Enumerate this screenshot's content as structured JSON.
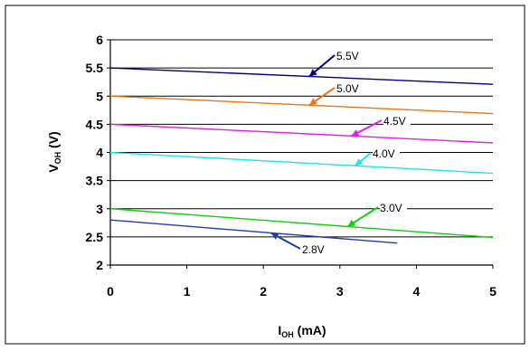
{
  "chart_data": {
    "type": "line",
    "xlabel": {
      "main": "I",
      "sub": "OH",
      "unit": " (mA)"
    },
    "ylabel": {
      "main": "V",
      "sub": "OH",
      "unit": " (V)"
    },
    "xlim": [
      0,
      5
    ],
    "ylim": [
      2,
      6
    ],
    "x_ticks": [
      "0",
      "1",
      "2",
      "3",
      "4",
      "5"
    ],
    "y_ticks": [
      "2",
      "2.5",
      "3",
      "3.5",
      "4",
      "4.5",
      "5",
      "5.5",
      "6"
    ],
    "grid": "horizontal",
    "legend": "none",
    "series": [
      {
        "label": "5.5V",
        "color": "#000080",
        "x": [
          0,
          5
        ],
        "y": [
          5.5,
          5.21
        ]
      },
      {
        "label": "5.0V",
        "color": "#E8761C",
        "x": [
          0,
          5
        ],
        "y": [
          5.0,
          4.69
        ]
      },
      {
        "label": "4.5V",
        "color": "#E020E0",
        "x": [
          0,
          5
        ],
        "y": [
          4.5,
          4.17
        ]
      },
      {
        "label": "4.0V",
        "color": "#18E8E8",
        "x": [
          0,
          5
        ],
        "y": [
          4.0,
          3.63
        ]
      },
      {
        "label": "3.0V",
        "color": "#10D010",
        "x": [
          0,
          5
        ],
        "y": [
          3.0,
          2.49
        ]
      },
      {
        "label": "2.8V",
        "color": "#1E3EB0",
        "x": [
          0,
          3.75
        ],
        "y": [
          2.8,
          2.39
        ]
      }
    ]
  }
}
